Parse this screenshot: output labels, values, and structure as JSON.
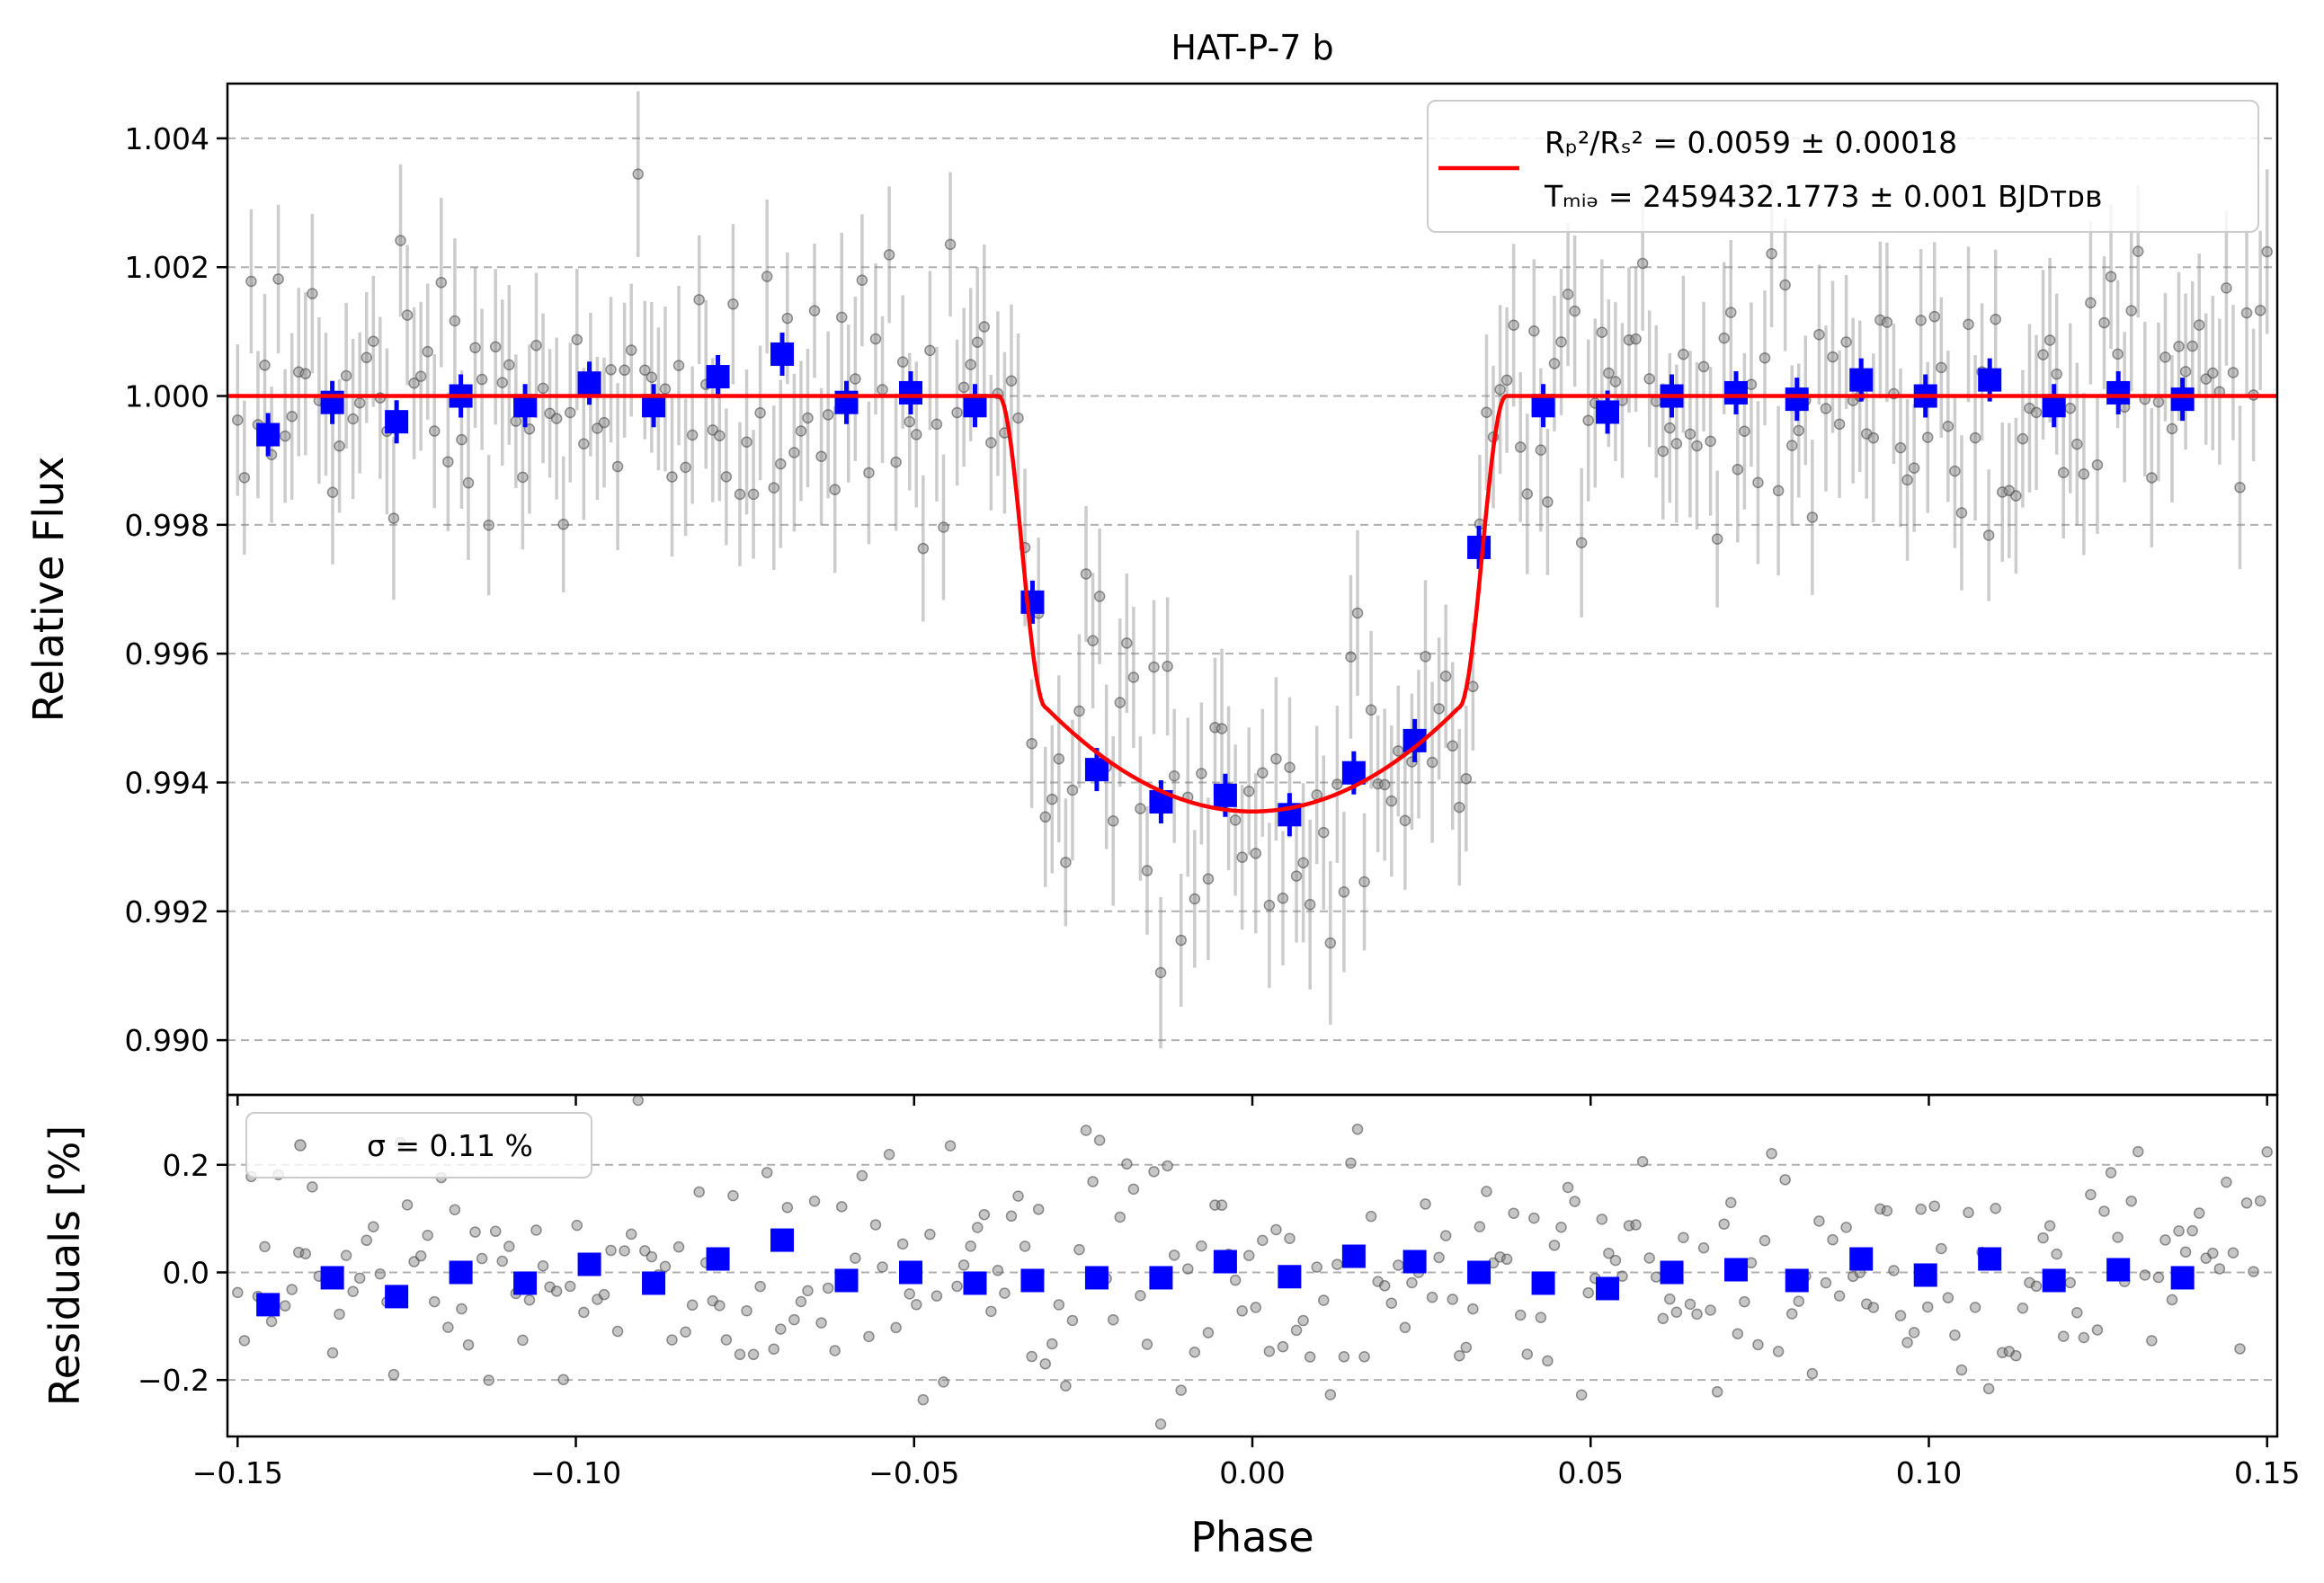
{
  "chart_data": [
    {
      "type": "scatter",
      "title": "HAT-P-7 b",
      "xlabel": "",
      "ylabel": "Relative Flux",
      "xlim": [
        -0.1515,
        0.1515
      ],
      "ylim": [
        0.98915,
        1.00485
      ],
      "xticks": [
        -0.15,
        -0.1,
        -0.05,
        0.0,
        0.05,
        0.1,
        0.15
      ],
      "xtick_labels": [
        "",
        "",
        "",
        "",
        "",
        "",
        ""
      ],
      "yticks": [
        0.99,
        0.992,
        0.994,
        0.996,
        0.998,
        1.0,
        1.002,
        1.004
      ],
      "ytick_labels": [
        "0.990",
        "0.992",
        "0.994",
        "0.996",
        "0.998",
        "1.000",
        "1.002",
        "1.004"
      ],
      "grid": "horizontal dashed",
      "legend": {
        "placement": "top-right",
        "entries": [
          {
            "label_line1": "Rₚ²/Rₛ² = 0.0059 ± 0.00018",
            "label_line2": "Tₘᵢₔ = 2459432.1773 ± 0.001 BJDᴛᴅʙ",
            "color": "#ff0000"
          }
        ]
      },
      "model": {
        "color": "#ff0000",
        "depth": 0.0059,
        "phase_ingress_start": -0.0375,
        "phase_full_start": -0.0305,
        "phase_full_end": 0.0305,
        "phase_egress_end": 0.0375,
        "min_flux": 0.99355,
        "baseline": 1.0
      },
      "series": [
        {
          "style": "gray points with error bars",
          "color": "#808080",
          "point_count": 300,
          "typical_error": 0.0011,
          "scatter_sigma": 0.0011
        },
        {
          "style": "binned blue squares",
          "color": "#0000ff",
          "x": [
            -0.1455,
            -0.136,
            -0.1265,
            -0.117,
            -0.1075,
            -0.098,
            -0.0885,
            -0.079,
            -0.0695,
            -0.06,
            -0.0505,
            -0.041,
            -0.0325,
            -0.023,
            -0.0135,
            -0.004,
            0.0055,
            0.015,
            0.024,
            0.0335,
            0.043,
            0.0525,
            0.062,
            0.0715,
            0.0805,
            0.09,
            0.0995,
            0.109,
            0.1185,
            0.128,
            0.1375
          ],
          "y": [
            0.9994,
            0.9999,
            0.9996,
            1.0,
            0.99985,
            1.0002,
            0.99985,
            1.0003,
            1.00065,
            0.9999,
            1.00005,
            0.99985,
            0.9968,
            0.9942,
            0.9937,
            0.9938,
            0.9935,
            0.99415,
            0.99465,
            0.99765,
            0.99985,
            0.99975,
            1.0,
            1.00005,
            0.99995,
            1.00025,
            1.0,
            1.00025,
            0.99985,
            1.00005,
            0.99995
          ]
        }
      ]
    },
    {
      "type": "scatter",
      "title": "",
      "xlabel": "Phase",
      "ylabel": "Residuals [%]",
      "xlim": [
        -0.1515,
        0.1515
      ],
      "ylim": [
        -0.305,
        0.33
      ],
      "xticks": [
        -0.15,
        -0.1,
        -0.05,
        0.0,
        0.05,
        0.1,
        0.15
      ],
      "xtick_labels": [
        "−0.15",
        "−0.10",
        "−0.05",
        "0.00",
        "0.05",
        "0.10",
        "0.15"
      ],
      "yticks": [
        -0.2,
        0.0,
        0.2
      ],
      "ytick_labels": [
        "−0.2",
        "0.0",
        "0.2"
      ],
      "grid": "horizontal dashed",
      "legend": {
        "placement": "top-left",
        "entries": [
          {
            "label": "σ = 0.11 %",
            "color": "#808080"
          }
        ]
      },
      "series": [
        {
          "style": "gray points",
          "color": "#808080",
          "point_count": 300,
          "sigma_percent": 0.11
        },
        {
          "style": "binned blue squares",
          "color": "#0000ff",
          "x": [
            -0.1455,
            -0.136,
            -0.1265,
            -0.117,
            -0.1075,
            -0.098,
            -0.0885,
            -0.079,
            -0.0695,
            -0.06,
            -0.0505,
            -0.041,
            -0.0325,
            -0.023,
            -0.0135,
            -0.004,
            0.0055,
            0.015,
            0.024,
            0.0335,
            0.043,
            0.0525,
            0.062,
            0.0715,
            0.0805,
            0.09,
            0.0995,
            0.109,
            0.1185,
            0.128,
            0.1375
          ],
          "y": [
            -0.06,
            -0.01,
            -0.045,
            0.0,
            -0.02,
            0.015,
            -0.02,
            0.025,
            0.06,
            -0.015,
            0.0,
            -0.02,
            -0.015,
            -0.01,
            -0.01,
            0.02,
            -0.008,
            0.03,
            0.02,
            0.0,
            -0.02,
            -0.03,
            0.0,
            0.005,
            -0.015,
            0.025,
            -0.005,
            0.025,
            -0.015,
            0.005,
            -0.01
          ]
        }
      ]
    }
  ]
}
